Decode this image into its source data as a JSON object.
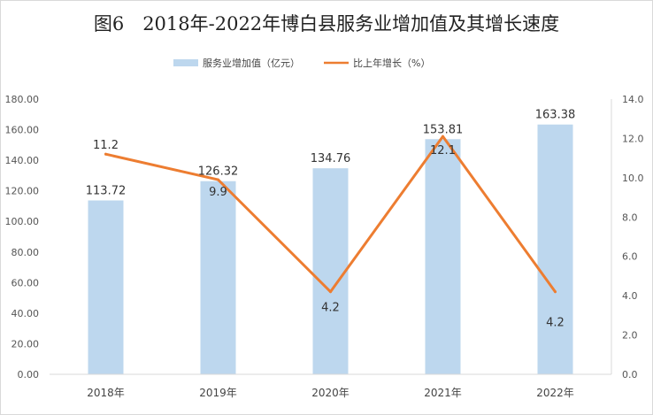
{
  "chart_data": {
    "type": "bar",
    "title": "图6　2018年-2022年博白县服务业增加值及其增长速度",
    "categories": [
      "2018年",
      "2019年",
      "2020年",
      "2021年",
      "2022年"
    ],
    "series": [
      {
        "name": "服务业增加值（亿元）",
        "type": "bar",
        "axis": "left",
        "color": "#bdd7ee",
        "values": [
          113.72,
          126.32,
          134.76,
          153.81,
          163.38
        ],
        "labels": [
          "113.72",
          "126.32",
          "134.76",
          "153.81",
          "163.38"
        ]
      },
      {
        "name": "比上年增长（%）",
        "type": "line",
        "axis": "right",
        "color": "#ed7d31",
        "values": [
          11.2,
          9.9,
          4.2,
          12.1,
          4.2
        ],
        "labels": [
          "11.2",
          "9.9",
          "4.2",
          "12.1",
          "4.2"
        ]
      }
    ],
    "y_left": {
      "min": 0,
      "max": 180,
      "step": 20,
      "ticks": [
        "0.00",
        "20.00",
        "40.00",
        "60.00",
        "80.00",
        "100.00",
        "120.00",
        "140.00",
        "160.00",
        "180.00"
      ]
    },
    "y_right": {
      "min": 0,
      "max": 14,
      "step": 2,
      "ticks": [
        "0.0",
        "2.0",
        "4.0",
        "6.0",
        "8.0",
        "10.0",
        "12.0",
        "14.0"
      ]
    },
    "legend": "top",
    "grid": false
  }
}
